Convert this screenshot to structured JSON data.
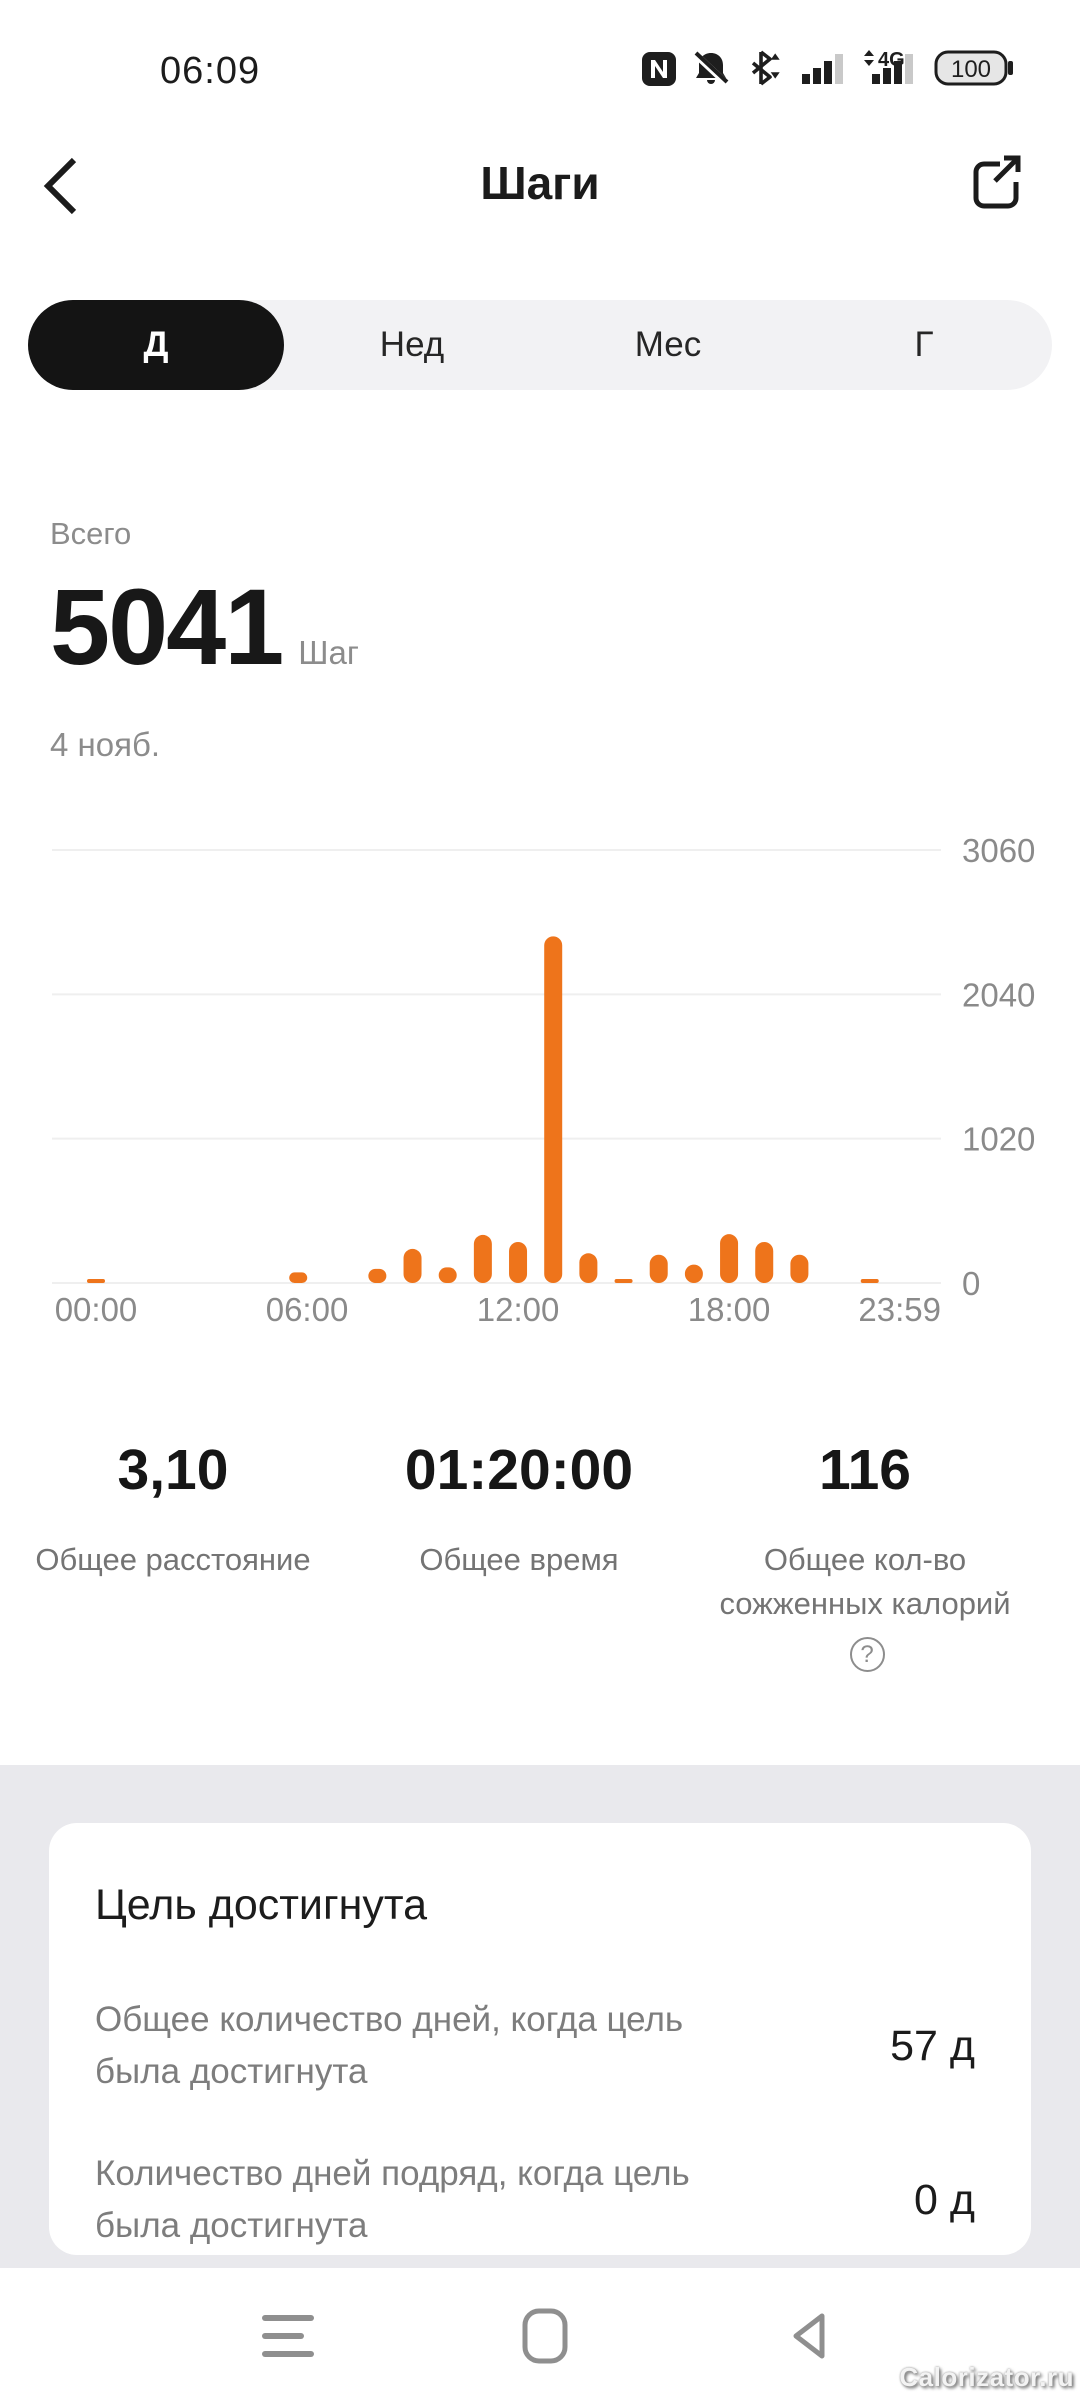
{
  "status_bar": {
    "time": "06:09",
    "battery_level": "100",
    "network_label": "4G",
    "icons": [
      "nfc",
      "notifications-off",
      "bluetooth",
      "signal",
      "dual-sim-4g",
      "battery"
    ]
  },
  "header": {
    "title": "Шаги"
  },
  "tabs": {
    "items": [
      {
        "label": "Д",
        "selected": true
      },
      {
        "label": "Нед",
        "selected": false
      },
      {
        "label": "Мес",
        "selected": false
      },
      {
        "label": "Г",
        "selected": false
      }
    ]
  },
  "summary": {
    "label": "Всего",
    "value": "5041",
    "unit": "Шаг",
    "date": "4 нояб."
  },
  "chart_data": {
    "type": "bar",
    "title": "Шаги за день (4 нояб.)",
    "x_unit": "hour_of_day",
    "x": [
      0,
      5.75,
      8,
      9,
      10,
      11,
      12,
      13,
      14,
      15,
      16,
      17,
      18,
      19,
      20,
      22
    ],
    "values": [
      20,
      75,
      100,
      241,
      110,
      340,
      290,
      2450,
      210,
      25,
      200,
      130,
      345,
      290,
      200,
      15
    ],
    "total_steps": 5041,
    "ylim": [
      0,
      3060
    ],
    "y_ticks": [
      0,
      1020,
      2040,
      3060
    ],
    "xtick_labels": [
      "00:00",
      "06:00",
      "12:00",
      "18:00",
      "23:59"
    ],
    "xtick_hours": [
      0,
      6,
      12,
      18,
      23.983
    ],
    "bar_color": "#EE741B",
    "grid_color": "#efefef",
    "axis_text_color": "#8a8a8a",
    "legend": "none",
    "grid": "horizontal"
  },
  "stats": [
    {
      "value": "3,10",
      "label": "Общее расстояние"
    },
    {
      "value": "01:20:00",
      "label": "Общее время"
    },
    {
      "value": "116",
      "label": "Общее кол-во сожженных калорий",
      "has_help_icon": true
    }
  ],
  "goal_card": {
    "title": "Цель достигнута",
    "rows": [
      {
        "label": "Общее количество дней, когда цель была достигнута",
        "value": "57 д"
      },
      {
        "label": "Количество дней подряд, когда цель была достигнута",
        "value": "0 д"
      }
    ]
  },
  "nav_bar": {
    "icons": [
      "recents",
      "home",
      "back"
    ]
  },
  "watermark": "Calorizator.ru",
  "icons": {
    "help_glyph": "?"
  },
  "colors": {
    "accent": "#EE741B",
    "text_primary": "#1a1a1a",
    "text_secondary": "#8c8c8c",
    "tab_bg": "#f2f2f4",
    "tab_selected_bg": "#141414",
    "section_bg": "#e9e9ed",
    "card_bg": "#ffffff"
  }
}
